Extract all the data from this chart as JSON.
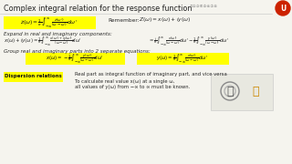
{
  "title": "Complex integral relation for the response function",
  "bg_color": "#f5f4ee",
  "title_color": "#222222",
  "highlight_yellow": "#ffff00",
  "text_color": "#2a2a2a",
  "remember_label": "Remember:",
  "remember_eq": "$Z(\\omega) = x(\\omega) + iy(\\omega)$",
  "expand_label": "Expand in real and imaginary components:",
  "group_label": "Group real and imaginary parts into 2 separate equations:",
  "dispersion_label": "Dispersion relations",
  "dispersion_text1": "Real part as integral function of imaginary part, and vice versa",
  "dispersion_text2": "To calculate real value x(ω) at a single ω,",
  "dispersion_text3": "all values of y(ω) from −∞ to ∞ must be known.",
  "icon_color": "#cc2200",
  "nav_color": "#888888",
  "line_color": "#cccccc"
}
